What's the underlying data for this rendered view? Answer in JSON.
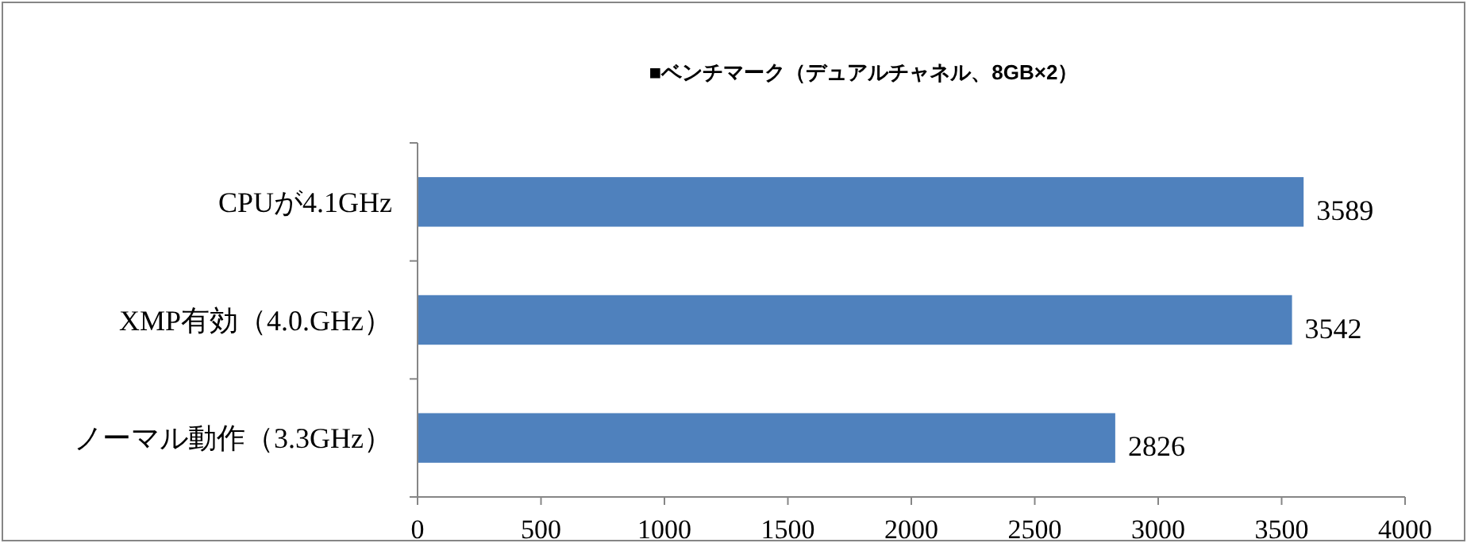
{
  "chart_data": {
    "type": "bar",
    "orientation": "horizontal",
    "title": "■ベンチマーク（デュアルチャネル、8GB×2）",
    "categories": [
      "CPUが4.1GHz",
      "XMP有効（4.0.GHz）",
      "ノーマル動作（3.3GHz）"
    ],
    "values": [
      3589,
      3542,
      2826
    ],
    "color": "#4f81bd",
    "xlim": [
      0,
      4000
    ],
    "xticks": [
      0,
      500,
      1000,
      1500,
      2000,
      2500,
      3000,
      3500,
      4000
    ],
    "data_labels": true
  }
}
